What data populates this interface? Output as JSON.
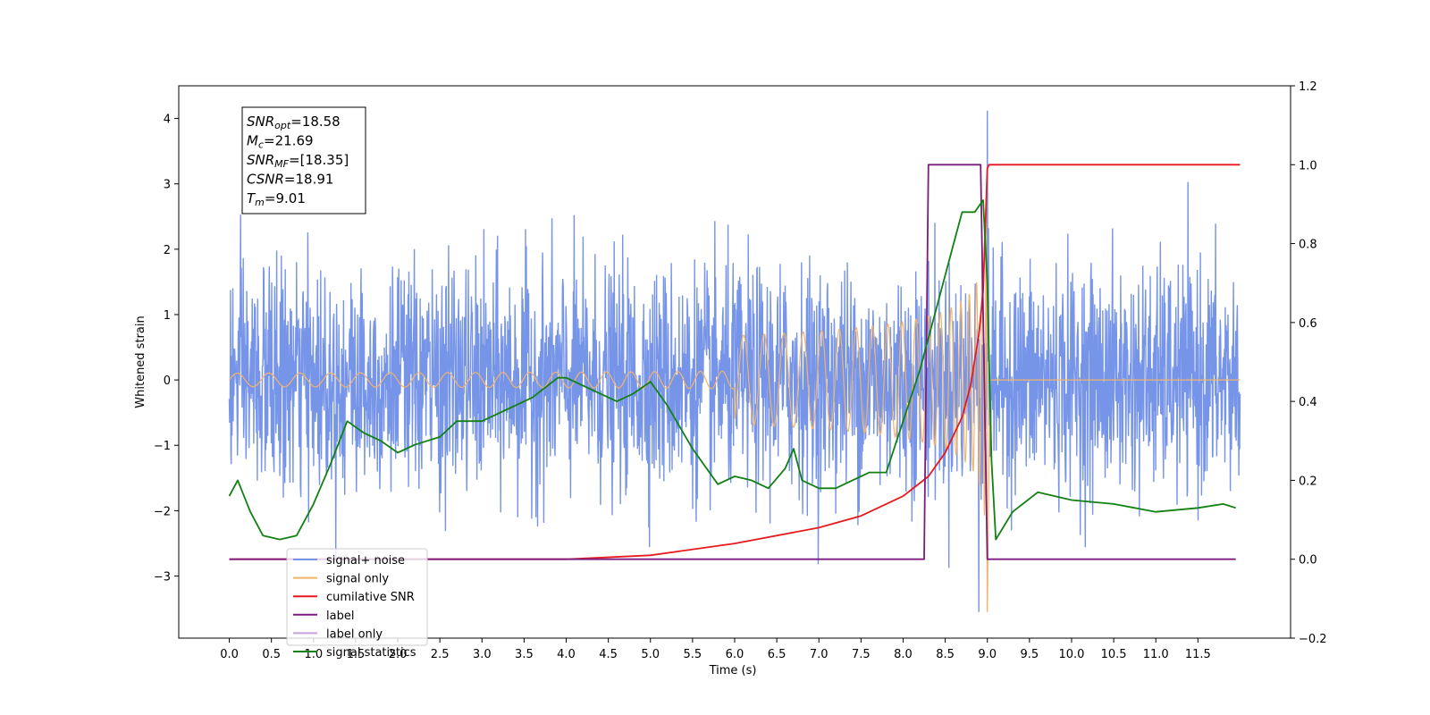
{
  "chart_data": {
    "type": "line",
    "title": "",
    "xlabel": "Time (s)",
    "ylabel": "Whitened strain",
    "ylabel_right": "",
    "xlim": [
      -0.6,
      12.6
    ],
    "ylim": [
      -3.95,
      4.5
    ],
    "ylim_right": [
      -0.2,
      1.2
    ],
    "x_ticks": [
      0.0,
      0.5,
      1.0,
      1.5,
      2.0,
      2.5,
      3.0,
      3.5,
      4.0,
      4.5,
      5.0,
      5.5,
      6.0,
      6.5,
      7.0,
      7.5,
      8.0,
      8.5,
      9.0,
      9.5,
      10.0,
      10.5,
      11.0,
      11.5
    ],
    "x_tick_labels": [
      "0.0",
      "0.5",
      "1.0",
      "1.5",
      "2.0",
      "2.5",
      "3.0",
      "3.5",
      "4.0",
      "4.5",
      "5.0",
      "5.5",
      "6.0",
      "6.5",
      "7.0",
      "7.5",
      "8.0",
      "8.5",
      "9.0",
      "9.5",
      "10.0",
      "10.5",
      "11.0",
      "11.5"
    ],
    "y_ticks_left": [
      -3,
      -2,
      -1,
      0,
      1,
      2,
      3,
      4
    ],
    "y_tick_labels_left": [
      "−3",
      "−2",
      "−1",
      "0",
      "1",
      "2",
      "3",
      "4"
    ],
    "y_ticks_right": [
      -0.2,
      0.0,
      0.2,
      0.4,
      0.6,
      0.8,
      1.0,
      1.2
    ],
    "y_tick_labels_right": [
      "−0.2",
      "0.0",
      "0.2",
      "0.4",
      "0.6",
      "0.8",
      "1.0",
      "1.2"
    ],
    "grid": false,
    "legend_position": "lower-left",
    "annotation": {
      "lines": [
        {
          "sym": "SNR",
          "sub": "opt",
          "value": "=18.58"
        },
        {
          "sym": "M",
          "sub": "c",
          "value": "=21.69"
        },
        {
          "sym": "SNR",
          "sub": "MF",
          "value": "=[18.35]"
        },
        {
          "sym": "CSNR",
          "sub": "",
          "value": "=18.91"
        },
        {
          "sym": "T",
          "sub": "m",
          "value": "=9.01"
        }
      ]
    },
    "series": [
      {
        "name": "signal+ noise",
        "axis": "left",
        "color": "#7694e8",
        "description_values": {
          "t_start": 0.0,
          "t_end": 12.0,
          "noise_std": 0.85,
          "min": -3.55,
          "max": 4.12,
          "peak_time": 9.0
        }
      },
      {
        "name": "signal only",
        "axis": "left",
        "color": "#f2b36a",
        "chirp": {
          "t_start": 0.0,
          "t_merge": 9.0,
          "t_end": 12.0,
          "peak_amplitude": 3.55
        }
      },
      {
        "name": "cumilative SNR",
        "axis": "right",
        "color": "#e8191c",
        "x": [
          0.0,
          4.0,
          5.0,
          6.0,
          7.0,
          7.5,
          8.0,
          8.3,
          8.5,
          8.7,
          8.8,
          8.9,
          8.95,
          9.0,
          9.02,
          12.0
        ],
        "values": [
          0.0,
          0.0,
          0.01,
          0.04,
          0.08,
          0.11,
          0.16,
          0.21,
          0.27,
          0.36,
          0.44,
          0.57,
          0.68,
          0.99,
          1.0,
          1.0
        ]
      },
      {
        "name": "label",
        "axis": "right",
        "color": "#7a1c7d",
        "x": [
          0.0,
          8.25,
          8.3,
          8.92,
          9.0,
          11.95
        ],
        "values": [
          0.0,
          0.0,
          1.0,
          1.0,
          0.0,
          0.0
        ]
      },
      {
        "name": "label only",
        "axis": "right",
        "color": "#c8a2dc",
        "hidden_behind_legend": true,
        "x": [],
        "values": []
      },
      {
        "name": "signal statistics",
        "axis": "right",
        "color": "#128012",
        "x": [
          0.0,
          0.1,
          0.25,
          0.4,
          0.6,
          0.8,
          1.0,
          1.2,
          1.4,
          1.6,
          1.8,
          2.0,
          2.2,
          2.5,
          2.7,
          3.0,
          3.3,
          3.6,
          3.9,
          4.0,
          4.3,
          4.6,
          4.8,
          5.0,
          5.2,
          5.5,
          5.8,
          6.0,
          6.2,
          6.4,
          6.6,
          6.7,
          6.8,
          7.0,
          7.2,
          7.4,
          7.6,
          7.8,
          8.0,
          8.2,
          8.4,
          8.6,
          8.7,
          8.85,
          8.95,
          9.0,
          9.05,
          9.1,
          9.3,
          9.6,
          10.0,
          10.5,
          11.0,
          11.5,
          11.8,
          11.95
        ],
        "values": [
          0.16,
          0.2,
          0.12,
          0.06,
          0.05,
          0.06,
          0.14,
          0.24,
          0.35,
          0.32,
          0.3,
          0.27,
          0.29,
          0.31,
          0.35,
          0.35,
          0.38,
          0.41,
          0.46,
          0.46,
          0.43,
          0.4,
          0.42,
          0.45,
          0.39,
          0.28,
          0.19,
          0.21,
          0.2,
          0.18,
          0.23,
          0.28,
          0.2,
          0.18,
          0.18,
          0.2,
          0.22,
          0.22,
          0.35,
          0.48,
          0.64,
          0.8,
          0.88,
          0.88,
          0.91,
          0.7,
          0.25,
          0.05,
          0.12,
          0.17,
          0.15,
          0.14,
          0.12,
          0.13,
          0.14,
          0.13
        ]
      }
    ]
  }
}
